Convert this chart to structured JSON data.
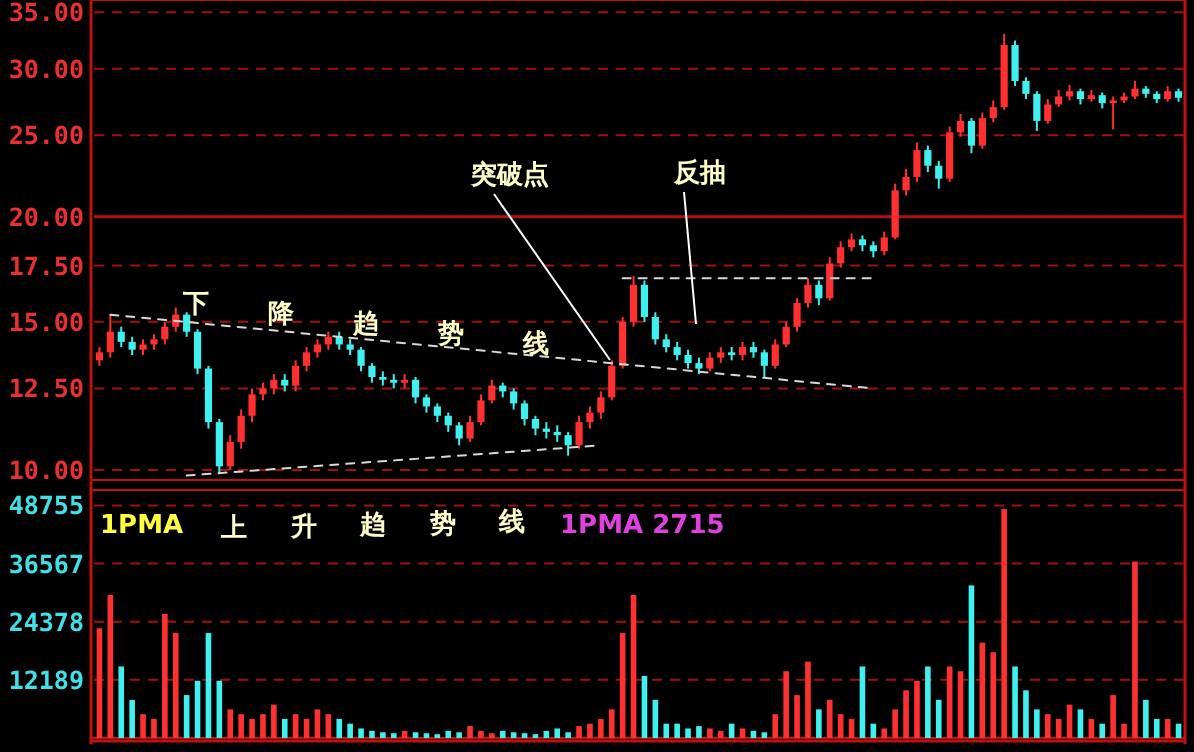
{
  "chart_data": [
    {
      "type": "candlestick",
      "log": true,
      "grid": "y",
      "tick_labels": "y",
      "categories": [
        null,
        null,
        null,
        null,
        null,
        null,
        null,
        null,
        null,
        null,
        null,
        null,
        null,
        null,
        null,
        null,
        null,
        null,
        null,
        null,
        null,
        null,
        null,
        null,
        null,
        null,
        null,
        null,
        null,
        null,
        null,
        null,
        null,
        null,
        null,
        null,
        null,
        null,
        null,
        null,
        null,
        null,
        null,
        null,
        null,
        null,
        null,
        null,
        null,
        null,
        null,
        null,
        null,
        null,
        null,
        null,
        null,
        null,
        null,
        null,
        null,
        null,
        null,
        null,
        null,
        null,
        null,
        null,
        null,
        null,
        null,
        null,
        null,
        null,
        null,
        null,
        null,
        null,
        null,
        null,
        null,
        null,
        null,
        null,
        null,
        null,
        null,
        null,
        null,
        null,
        null,
        null,
        null,
        null,
        null,
        null,
        null,
        null,
        null,
        null
      ],
      "ohlc": [
        [
          13.5,
          14.0,
          13.3,
          13.8
        ],
        [
          13.8,
          15.3,
          13.6,
          14.6
        ],
        [
          14.6,
          14.8,
          14.0,
          14.2
        ],
        [
          14.2,
          14.4,
          13.7,
          13.9
        ],
        [
          13.9,
          14.3,
          13.7,
          14.1
        ],
        [
          14.1,
          14.5,
          13.9,
          14.3
        ],
        [
          14.3,
          15.0,
          14.1,
          14.8
        ],
        [
          14.8,
          15.6,
          14.6,
          15.3
        ],
        [
          15.3,
          15.4,
          14.4,
          14.6
        ],
        [
          14.6,
          14.7,
          13.0,
          13.2
        ],
        [
          13.2,
          13.3,
          11.2,
          11.4
        ],
        [
          11.4,
          11.5,
          9.9,
          10.1
        ],
        [
          10.1,
          11.0,
          10.0,
          10.8
        ],
        [
          10.8,
          11.8,
          10.6,
          11.6
        ],
        [
          11.6,
          12.5,
          11.4,
          12.3
        ],
        [
          12.3,
          12.7,
          12.1,
          12.5
        ],
        [
          12.5,
          13.0,
          12.3,
          12.8
        ],
        [
          12.8,
          13.0,
          12.4,
          12.6
        ],
        [
          12.6,
          13.5,
          12.4,
          13.3
        ],
        [
          13.3,
          14.0,
          13.1,
          13.8
        ],
        [
          13.8,
          14.3,
          13.6,
          14.1
        ],
        [
          14.1,
          14.6,
          13.9,
          14.4
        ],
        [
          14.4,
          14.6,
          13.9,
          14.1
        ],
        [
          14.1,
          14.3,
          13.7,
          13.9
        ],
        [
          13.9,
          14.0,
          13.1,
          13.3
        ],
        [
          13.3,
          13.4,
          12.7,
          12.9
        ],
        [
          12.9,
          13.1,
          12.6,
          12.8
        ],
        [
          12.8,
          13.0,
          12.5,
          12.7
        ],
        [
          12.7,
          13.0,
          12.5,
          12.8
        ],
        [
          12.8,
          12.9,
          12.0,
          12.2
        ],
        [
          12.2,
          12.3,
          11.7,
          11.9
        ],
        [
          11.9,
          12.0,
          11.4,
          11.6
        ],
        [
          11.6,
          11.7,
          11.1,
          11.3
        ],
        [
          11.3,
          11.4,
          10.7,
          10.9
        ],
        [
          10.9,
          11.6,
          10.8,
          11.4
        ],
        [
          11.4,
          12.3,
          11.3,
          12.1
        ],
        [
          12.1,
          12.8,
          12.0,
          12.6
        ],
        [
          12.6,
          12.7,
          12.2,
          12.4
        ],
        [
          12.4,
          12.5,
          11.8,
          12.0
        ],
        [
          12.0,
          12.1,
          11.3,
          11.5
        ],
        [
          11.5,
          11.6,
          11.0,
          11.2
        ],
        [
          11.2,
          11.4,
          10.9,
          11.1
        ],
        [
          11.1,
          11.3,
          10.8,
          11.0
        ],
        [
          11.0,
          11.1,
          10.4,
          10.7
        ],
        [
          10.7,
          11.6,
          10.6,
          11.4
        ],
        [
          11.4,
          11.9,
          11.2,
          11.7
        ],
        [
          11.7,
          12.4,
          11.5,
          12.2
        ],
        [
          12.2,
          13.5,
          12.1,
          13.3
        ],
        [
          13.3,
          15.2,
          13.2,
          15.0
        ],
        [
          15.0,
          17.0,
          14.8,
          16.6
        ],
        [
          16.6,
          16.8,
          15.0,
          15.2
        ],
        [
          15.2,
          15.4,
          14.1,
          14.3
        ],
        [
          14.3,
          14.5,
          13.8,
          14.0
        ],
        [
          14.0,
          14.2,
          13.5,
          13.7
        ],
        [
          13.7,
          13.9,
          13.2,
          13.4
        ],
        [
          13.4,
          13.6,
          13.0,
          13.2
        ],
        [
          13.2,
          13.8,
          13.1,
          13.6
        ],
        [
          13.6,
          14.0,
          13.4,
          13.8
        ],
        [
          13.8,
          14.0,
          13.5,
          13.7
        ],
        [
          13.7,
          14.2,
          13.5,
          14.0
        ],
        [
          14.0,
          14.2,
          13.6,
          13.8
        ],
        [
          13.8,
          13.9,
          12.9,
          13.3
        ],
        [
          13.3,
          14.3,
          13.2,
          14.1
        ],
        [
          14.1,
          15.0,
          14.0,
          14.8
        ],
        [
          14.8,
          16.0,
          14.6,
          15.8
        ],
        [
          15.8,
          16.9,
          15.6,
          16.6
        ],
        [
          16.6,
          16.8,
          15.7,
          16.0
        ],
        [
          16.0,
          17.9,
          15.9,
          17.6
        ],
        [
          17.6,
          18.7,
          17.4,
          18.4
        ],
        [
          18.4,
          19.1,
          18.2,
          18.8
        ],
        [
          18.8,
          19.0,
          18.2,
          18.5
        ],
        [
          18.5,
          18.7,
          17.9,
          18.2
        ],
        [
          18.2,
          19.2,
          18.0,
          18.9
        ],
        [
          18.9,
          21.9,
          18.8,
          21.5
        ],
        [
          21.5,
          22.8,
          21.2,
          22.3
        ],
        [
          22.3,
          24.5,
          22.0,
          24.0
        ],
        [
          24.0,
          24.3,
          22.6,
          23.0
        ],
        [
          23.0,
          23.3,
          21.6,
          22.2
        ],
        [
          22.2,
          25.6,
          22.0,
          25.2
        ],
        [
          25.2,
          26.5,
          24.9,
          26.0
        ],
        [
          26.0,
          26.2,
          23.8,
          24.3
        ],
        [
          24.3,
          26.6,
          24.1,
          26.2
        ],
        [
          26.2,
          27.5,
          25.9,
          27.0
        ],
        [
          27.0,
          33.0,
          26.8,
          32.0
        ],
        [
          32.0,
          32.4,
          28.6,
          29.0
        ],
        [
          29.0,
          29.3,
          27.6,
          28.0
        ],
        [
          28.0,
          28.2,
          25.3,
          26.0
        ],
        [
          26.0,
          27.6,
          25.8,
          27.2
        ],
        [
          27.2,
          28.3,
          27.0,
          27.8
        ],
        [
          27.8,
          28.7,
          27.5,
          28.2
        ],
        [
          28.2,
          28.4,
          27.2,
          27.6
        ],
        [
          27.6,
          28.3,
          27.4,
          27.9
        ],
        [
          27.9,
          28.1,
          26.9,
          27.3
        ],
        [
          27.3,
          27.8,
          25.4,
          27.5
        ],
        [
          27.5,
          28.1,
          27.3,
          27.8
        ],
        [
          27.8,
          29.0,
          27.6,
          28.4
        ],
        [
          28.4,
          28.6,
          27.7,
          28.0
        ],
        [
          28.0,
          28.2,
          27.3,
          27.6
        ],
        [
          27.6,
          28.6,
          27.4,
          28.2
        ],
        [
          28.2,
          28.4,
          27.4,
          27.7
        ]
      ],
      "colors": [
        "#ff3030",
        "#ff3030",
        "#40f0f0",
        "#40f0f0",
        "#ff3030",
        "#ff3030",
        "#ff3030",
        "#ff3030",
        "#40f0f0",
        "#40f0f0",
        "#40f0f0",
        "#40f0f0",
        "#ff3030",
        "#ff3030",
        "#ff3030",
        "#ff3030",
        "#ff3030",
        "#40f0f0",
        "#ff3030",
        "#ff3030",
        "#ff3030",
        "#ff3030",
        "#40f0f0",
        "#40f0f0",
        "#40f0f0",
        "#40f0f0",
        "#40f0f0",
        "#40f0f0",
        "#ff3030",
        "#40f0f0",
        "#40f0f0",
        "#40f0f0",
        "#40f0f0",
        "#40f0f0",
        "#ff3030",
        "#ff3030",
        "#ff3030",
        "#40f0f0",
        "#40f0f0",
        "#40f0f0",
        "#40f0f0",
        "#40f0f0",
        "#40f0f0",
        "#40f0f0",
        "#ff3030",
        "#ff3030",
        "#ff3030",
        "#ff3030",
        "#ff3030",
        "#ff3030",
        "#40f0f0",
        "#40f0f0",
        "#40f0f0",
        "#40f0f0",
        "#40f0f0",
        "#40f0f0",
        "#ff3030",
        "#ff3030",
        "#40f0f0",
        "#ff3030",
        "#40f0f0",
        "#40f0f0",
        "#ff3030",
        "#ff3030",
        "#ff3030",
        "#ff3030",
        "#40f0f0",
        "#ff3030",
        "#ff3030",
        "#ff3030",
        "#40f0f0",
        "#40f0f0",
        "#ff3030",
        "#ff3030",
        "#ff3030",
        "#ff3030",
        "#40f0f0",
        "#40f0f0",
        "#ff3030",
        "#ff3030",
        "#40f0f0",
        "#ff3030",
        "#ff3030",
        "#ff3030",
        "#40f0f0",
        "#40f0f0",
        "#40f0f0",
        "#ff3030",
        "#ff3030",
        "#ff3030",
        "#40f0f0",
        "#ff3030",
        "#40f0f0",
        "#ff3030",
        "#ff3030",
        "#ff3030",
        "#40f0f0",
        "#40f0f0",
        "#ff3030",
        "#40f0f0"
      ],
      "ylim": [
        9.73,
        36.2
      ],
      "yticks": [
        {
          "value": 10,
          "label": "10.00"
        },
        {
          "value": 12.5,
          "label": "12.50"
        },
        {
          "value": 15,
          "label": "15.00"
        },
        {
          "value": 17.5,
          "label": "17.50"
        },
        {
          "value": 20,
          "label": "20.00"
        },
        {
          "value": 25,
          "label": "25.00"
        },
        {
          "value": 30,
          "label": "30.00"
        },
        {
          "value": 35,
          "label": "35.00"
        }
      ],
      "ref_lines": [
        {
          "axis": "y",
          "value": 20,
          "color": "#b01010"
        }
      ],
      "series": [
        {
          "type": "line",
          "color": "#d8d8d8",
          "line_style": "dashed",
          "values": [
            null,
            15.3,
            null,
            null,
            null,
            null,
            null,
            null,
            null,
            null,
            null,
            null,
            null,
            null,
            null,
            null,
            null,
            null,
            null,
            null,
            null,
            null,
            null,
            null,
            null,
            null,
            null,
            null,
            null,
            null,
            null,
            null,
            null,
            null,
            null,
            null,
            null,
            null,
            null,
            null,
            null,
            null,
            null,
            null,
            null,
            null,
            null,
            null,
            null,
            null,
            null,
            null,
            null,
            null,
            null,
            null,
            null,
            null,
            null,
            null,
            null,
            null,
            null,
            null,
            null,
            null,
            null,
            null,
            null,
            null,
            null,
            12.5,
            null,
            null,
            null,
            null,
            null,
            null,
            null,
            null,
            null,
            null,
            null,
            null,
            null,
            null,
            null,
            null,
            null,
            null,
            null,
            null,
            null,
            null,
            null,
            null,
            null,
            null,
            null,
            null
          ]
        },
        {
          "type": "line",
          "color": "#d8d8d8",
          "line_style": "dashed",
          "values": [
            null,
            null,
            null,
            null,
            null,
            null,
            null,
            null,
            9.85,
            null,
            null,
            null,
            null,
            null,
            null,
            null,
            null,
            null,
            null,
            null,
            null,
            null,
            null,
            null,
            null,
            null,
            null,
            null,
            null,
            null,
            null,
            null,
            null,
            null,
            null,
            null,
            null,
            null,
            null,
            null,
            null,
            null,
            null,
            null,
            null,
            null,
            10.7,
            null,
            null,
            null,
            null,
            null,
            null,
            null,
            null,
            null,
            null,
            null,
            null,
            null,
            null,
            null,
            null,
            null,
            null,
            null,
            null,
            null,
            null,
            null,
            null,
            null,
            null,
            null,
            null,
            null,
            null,
            null,
            null,
            null,
            null,
            null,
            null,
            null,
            null,
            null,
            null,
            null,
            null,
            null,
            null,
            null,
            null,
            null,
            null,
            null,
            null,
            null,
            null,
            null
          ]
        },
        {
          "type": "line",
          "color": "#d8d8d8",
          "line_style": "dashed",
          "values": [
            null,
            null,
            null,
            null,
            null,
            null,
            null,
            null,
            null,
            null,
            null,
            null,
            null,
            null,
            null,
            null,
            null,
            null,
            null,
            null,
            null,
            null,
            null,
            null,
            null,
            null,
            null,
            null,
            null,
            null,
            null,
            null,
            null,
            null,
            null,
            null,
            null,
            null,
            null,
            null,
            null,
            null,
            null,
            null,
            null,
            null,
            null,
            null,
            16.9,
            null,
            null,
            null,
            null,
            null,
            null,
            null,
            null,
            null,
            null,
            null,
            null,
            null,
            null,
            null,
            null,
            null,
            null,
            null,
            null,
            null,
            null,
            16.9,
            null,
            null,
            null,
            null,
            null,
            null,
            null,
            null,
            null,
            null,
            null,
            null,
            null,
            null,
            null,
            null,
            null,
            null,
            null,
            null,
            null,
            null,
            null,
            null,
            null,
            null,
            null,
            null
          ]
        }
      ],
      "annotations": [
        "突破点",
        "反抽",
        "下降趋势线",
        "上升趋势线",
        "1PMA",
        "1PMA 2715"
      ]
    },
    {
      "type": "bar",
      "grid": "y",
      "tick_labels": "y",
      "categories": [
        null,
        null,
        null,
        null,
        null,
        null,
        null,
        null,
        null,
        null,
        null,
        null,
        null,
        null,
        null,
        null,
        null,
        null,
        null,
        null,
        null,
        null,
        null,
        null,
        null,
        null,
        null,
        null,
        null,
        null,
        null,
        null,
        null,
        null,
        null,
        null,
        null,
        null,
        null,
        null,
        null,
        null,
        null,
        null,
        null,
        null,
        null,
        null,
        null,
        null,
        null,
        null,
        null,
        null,
        null,
        null,
        null,
        null,
        null,
        null,
        null,
        null,
        null,
        null,
        null,
        null,
        null,
        null,
        null,
        null,
        null,
        null,
        null,
        null,
        null,
        null,
        null,
        null,
        null,
        null,
        null,
        null,
        null,
        null,
        null,
        null,
        null,
        null,
        null,
        null,
        null,
        null,
        null,
        null,
        null,
        null,
        null,
        null,
        null,
        null
      ],
      "values": [
        23000,
        30000,
        15000,
        8000,
        5000,
        4000,
        26000,
        22000,
        9000,
        12000,
        22000,
        12000,
        6000,
        5000,
        4000,
        5000,
        7000,
        4000,
        5000,
        4000,
        6000,
        5000,
        4000,
        3000,
        2000,
        1500,
        1200,
        1000,
        1500,
        1200,
        1000,
        800,
        1500,
        1200,
        2500,
        1500,
        1000,
        1500,
        1200,
        1000,
        800,
        1500,
        2000,
        1200,
        2500,
        3000,
        4000,
        6000,
        22000,
        30000,
        13000,
        8000,
        3000,
        3000,
        2000,
        2500,
        2000,
        1500,
        3000,
        2000,
        1500,
        1200,
        5000,
        14000,
        9000,
        16000,
        6000,
        8000,
        5000,
        4000,
        15000,
        3000,
        2000,
        6000,
        10000,
        12000,
        15000,
        8000,
        15000,
        14000,
        32000,
        20000,
        18000,
        48000,
        15000,
        10000,
        6000,
        5000,
        4000,
        7000,
        6000,
        4000,
        3000,
        9000,
        3000,
        37000,
        8000,
        4000,
        4000,
        3000
      ],
      "colors": [
        "#ff3030",
        "#ff3030",
        "#40f0f0",
        "#40f0f0",
        "#ff3030",
        "#ff3030",
        "#ff3030",
        "#ff3030",
        "#40f0f0",
        "#40f0f0",
        "#40f0f0",
        "#40f0f0",
        "#ff3030",
        "#ff3030",
        "#ff3030",
        "#ff3030",
        "#ff3030",
        "#40f0f0",
        "#ff3030",
        "#ff3030",
        "#ff3030",
        "#ff3030",
        "#40f0f0",
        "#40f0f0",
        "#40f0f0",
        "#40f0f0",
        "#40f0f0",
        "#40f0f0",
        "#ff3030",
        "#40f0f0",
        "#40f0f0",
        "#40f0f0",
        "#40f0f0",
        "#40f0f0",
        "#ff3030",
        "#ff3030",
        "#ff3030",
        "#40f0f0",
        "#40f0f0",
        "#40f0f0",
        "#40f0f0",
        "#40f0f0",
        "#40f0f0",
        "#40f0f0",
        "#ff3030",
        "#ff3030",
        "#ff3030",
        "#ff3030",
        "#ff3030",
        "#ff3030",
        "#40f0f0",
        "#40f0f0",
        "#40f0f0",
        "#40f0f0",
        "#40f0f0",
        "#40f0f0",
        "#ff3030",
        "#ff3030",
        "#40f0f0",
        "#ff3030",
        "#40f0f0",
        "#40f0f0",
        "#ff3030",
        "#ff3030",
        "#ff3030",
        "#ff3030",
        "#40f0f0",
        "#ff3030",
        "#ff3030",
        "#ff3030",
        "#40f0f0",
        "#40f0f0",
        "#ff3030",
        "#ff3030",
        "#ff3030",
        "#ff3030",
        "#40f0f0",
        "#40f0f0",
        "#ff3030",
        "#ff3030",
        "#40f0f0",
        "#ff3030",
        "#ff3030",
        "#ff3030",
        "#40f0f0",
        "#40f0f0",
        "#40f0f0",
        "#ff3030",
        "#ff3030",
        "#ff3030",
        "#40f0f0",
        "#ff3030",
        "#40f0f0",
        "#ff3030",
        "#ff3030",
        "#ff3030",
        "#40f0f0",
        "#40f0f0",
        "#ff3030",
        "#40f0f0"
      ],
      "ylim": [
        0,
        52000
      ],
      "yticks": [
        12189,
        24378,
        36567,
        48755
      ]
    }
  ]
}
